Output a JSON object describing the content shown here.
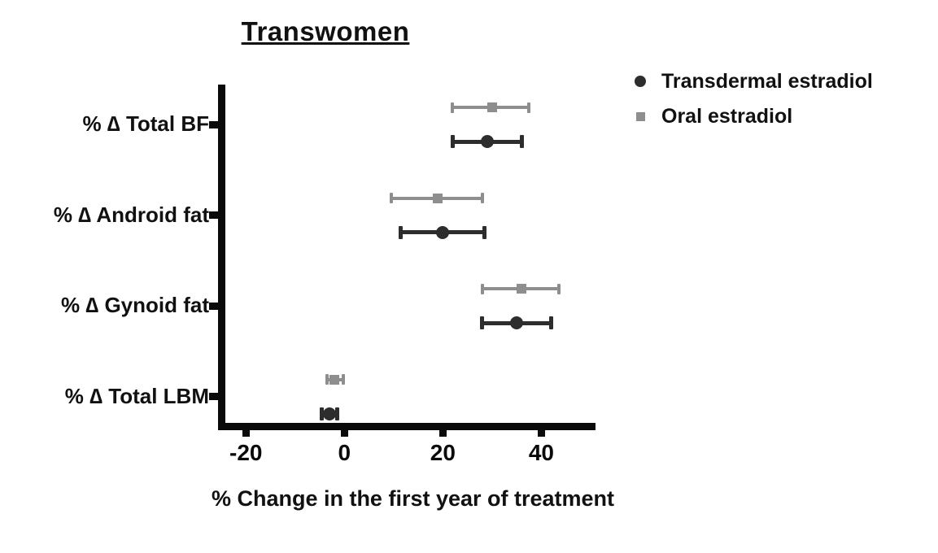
{
  "chart_data": {
    "type": "scatter",
    "title": "Transwomen",
    "xlabel": "% Change in the first year of treatment",
    "categories": [
      "% ∆ Total BF",
      "% ∆ Android fat",
      "% ∆ Gynoid fat",
      "% ∆ Total LBM"
    ],
    "x_ticks": [
      "-20",
      "0",
      "20",
      "40"
    ],
    "x_tick_values": [
      -20,
      0,
      20,
      40
    ],
    "xlim": [
      -25,
      51
    ],
    "grid": false,
    "legend_position": "top-right",
    "series": [
      {
        "name": "Transdermal estradiol",
        "marker": "circle",
        "color": "#2d2d2d",
        "points": [
          {
            "category": "% ∆ Total BF",
            "value": 29,
            "lo": 22,
            "hi": 36
          },
          {
            "category": "% ∆ Android fat",
            "value": 20,
            "lo": 11.5,
            "hi": 28.5
          },
          {
            "category": "% ∆ Gynoid fat",
            "value": 35,
            "lo": 28,
            "hi": 42
          },
          {
            "category": "% ∆ Total LBM",
            "value": -3,
            "lo": -4.6,
            "hi": -1.5
          }
        ]
      },
      {
        "name": "Oral estradiol",
        "marker": "square",
        "color": "#8e8e8e",
        "points": [
          {
            "category": "% ∆ Total BF",
            "value": 30,
            "lo": 22,
            "hi": 37.5
          },
          {
            "category": "% ∆ Android fat",
            "value": 19,
            "lo": 9.5,
            "hi": 28
          },
          {
            "category": "% ∆ Gynoid fat",
            "value": 36,
            "lo": 28,
            "hi": 43.5
          },
          {
            "category": "% ∆ Total LBM",
            "value": -2,
            "lo": -3.5,
            "hi": -0.3
          }
        ]
      }
    ],
    "axis_color": "#0a0a0a"
  }
}
